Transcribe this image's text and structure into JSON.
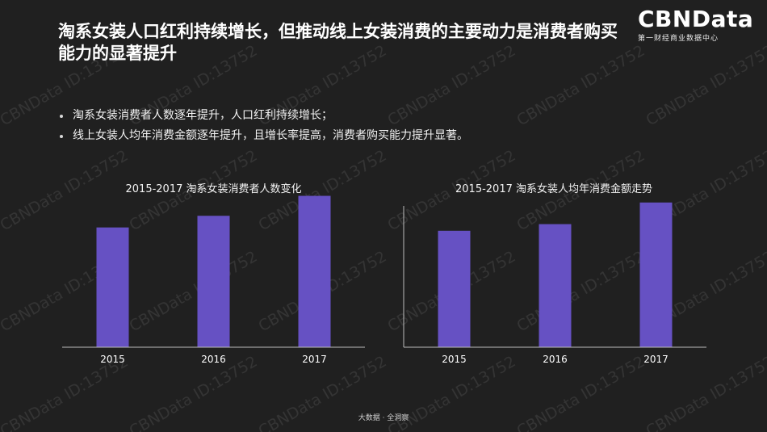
{
  "title": "淘系女装人口红利持续增长，但推动线上女装消费的主要动力是消费者购买能力的显著提升",
  "logo": {
    "name": "CBNData",
    "subtitle": "第一财经商业数据中心"
  },
  "bullets": [
    "淘系女装消费者人数逐年提升，人口红利持续增长；",
    "线上女装人均年消费金额逐年提升，且增长率提高，消费者购买能力提升显著。"
  ],
  "watermark": "CBNData ID:13752",
  "footer": "大数据 · 全洞察",
  "colors": {
    "background": "#202020",
    "bar": "#6651c3",
    "axis": "#bdbdbd",
    "text": "#ffffff"
  },
  "chart_data": [
    {
      "type": "bar",
      "title": "2015-2017 淘系女装消费者人数变化",
      "categories": [
        "2015",
        "2016",
        "2017"
      ],
      "values": [
        72,
        79,
        91
      ],
      "ylim": [
        0,
        100
      ],
      "grid": false,
      "legend": "none"
    },
    {
      "type": "bar",
      "title": "2015-2017 淘系女装人均年消费金额走势",
      "categories": [
        "2015",
        "2016",
        "2017"
      ],
      "values": [
        70,
        74,
        87
      ],
      "ylim": [
        0,
        100
      ],
      "grid": false,
      "legend": "none"
    }
  ]
}
